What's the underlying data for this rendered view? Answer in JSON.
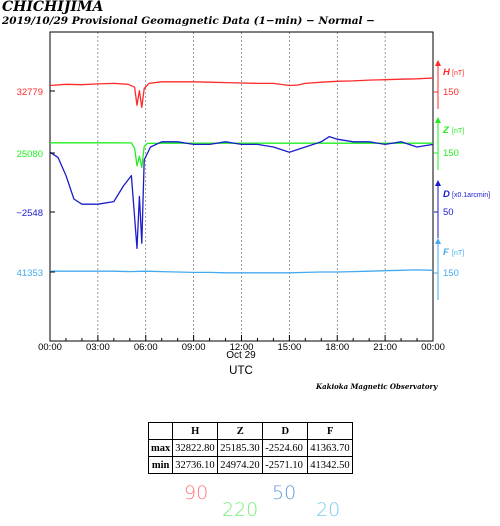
{
  "header": {
    "station": "CHICHIJIMA",
    "subtitle": "2019/10/29  Provisional Geomagnetic Data (1−min)  − Normal −"
  },
  "observatory": "Kakioka Magnetic Observatory",
  "chart_data": {
    "type": "line",
    "x_ticks": [
      "00:00",
      "03:00",
      "06:00",
      "09:00",
      "12:00",
      "15:00",
      "18:00",
      "21:00",
      "00:00"
    ],
    "x_date_label": "Oct 29",
    "xlabel": "UTC",
    "grid": true,
    "series": [
      {
        "name": "H",
        "unit": "[nT]",
        "color": "#ff2a2a",
        "left_tick": "32779",
        "right_tick": "150",
        "points": [
          [
            0,
            32792
          ],
          [
            1,
            32795
          ],
          [
            2,
            32794
          ],
          [
            3,
            32796
          ],
          [
            4,
            32797
          ],
          [
            4.9,
            32795
          ],
          [
            5.3,
            32788
          ],
          [
            5.45,
            32745
          ],
          [
            5.6,
            32780
          ],
          [
            5.75,
            32740
          ],
          [
            5.9,
            32785
          ],
          [
            6.2,
            32797
          ],
          [
            7,
            32801
          ],
          [
            8,
            32801
          ],
          [
            9,
            32801
          ],
          [
            10,
            32800
          ],
          [
            11,
            32799
          ],
          [
            12,
            32798
          ],
          [
            13,
            32797
          ],
          [
            14,
            32797
          ],
          [
            15.0,
            32792
          ],
          [
            15.5,
            32793
          ],
          [
            16,
            32797
          ],
          [
            17,
            32800
          ],
          [
            18,
            32802
          ],
          [
            19,
            32803
          ],
          [
            20,
            32805
          ],
          [
            21,
            32806
          ],
          [
            22,
            32807
          ],
          [
            23,
            32808
          ],
          [
            24,
            32810
          ]
        ]
      },
      {
        "name": "Z",
        "unit": "[nT]",
        "color": "#22ee22",
        "left_tick": "25080",
        "right_tick": "150",
        "points": [
          [
            0,
            25144
          ],
          [
            2,
            25144
          ],
          [
            4,
            25144
          ],
          [
            5.1,
            25143
          ],
          [
            5.3,
            25110
          ],
          [
            5.45,
            25000
          ],
          [
            5.6,
            25060
          ],
          [
            5.75,
            24990
          ],
          [
            5.9,
            25120
          ],
          [
            6.1,
            25140
          ],
          [
            7,
            25141
          ],
          [
            9,
            25141
          ],
          [
            12,
            25141
          ],
          [
            15,
            25141
          ],
          [
            18,
            25141
          ],
          [
            21,
            25141
          ],
          [
            24,
            25141
          ]
        ]
      },
      {
        "name": "D",
        "unit": "[x0.1arcmin]",
        "color": "#1c1ccc",
        "left_tick": "−2548",
        "right_tick": "50",
        "points": [
          [
            0,
            -2525
          ],
          [
            0.5,
            -2527
          ],
          [
            1.0,
            -2534
          ],
          [
            1.5,
            -2543
          ],
          [
            2.0,
            -2545
          ],
          [
            3,
            -2545
          ],
          [
            4.0,
            -2544
          ],
          [
            4.6,
            -2538
          ],
          [
            5.1,
            -2534
          ],
          [
            5.3,
            -2550
          ],
          [
            5.45,
            -2562
          ],
          [
            5.6,
            -2542
          ],
          [
            5.75,
            -2560
          ],
          [
            5.9,
            -2528
          ],
          [
            6.3,
            -2523
          ],
          [
            7,
            -2521
          ],
          [
            8,
            -2521
          ],
          [
            9,
            -2522
          ],
          [
            10,
            -2522
          ],
          [
            11,
            -2521
          ],
          [
            12,
            -2522
          ],
          [
            13,
            -2522
          ],
          [
            14,
            -2523
          ],
          [
            15,
            -2525
          ],
          [
            16,
            -2523
          ],
          [
            17,
            -2521
          ],
          [
            17.5,
            -2519
          ],
          [
            18,
            -2520
          ],
          [
            19,
            -2521
          ],
          [
            20,
            -2521
          ],
          [
            21,
            -2522
          ],
          [
            22,
            -2521
          ],
          [
            23,
            -2523
          ],
          [
            24,
            -2522
          ]
        ]
      },
      {
        "name": "F",
        "unit": "[nT]",
        "color": "#44aaee",
        "left_tick": "41353",
        "right_tick": "150",
        "points": [
          [
            0,
            41355
          ],
          [
            2,
            41355
          ],
          [
            4,
            41355
          ],
          [
            5,
            41354
          ],
          [
            6,
            41355
          ],
          [
            7,
            41354
          ],
          [
            8,
            41353
          ],
          [
            9,
            41352
          ],
          [
            10,
            41352
          ],
          [
            11,
            41351
          ],
          [
            12,
            41351
          ],
          [
            13,
            41351
          ],
          [
            14,
            41351
          ],
          [
            15,
            41351
          ],
          [
            16,
            41352
          ],
          [
            17,
            41353
          ],
          [
            18,
            41353
          ],
          [
            19,
            41354
          ],
          [
            20,
            41355
          ],
          [
            21,
            41356
          ],
          [
            22,
            41357
          ],
          [
            23,
            41358
          ],
          [
            24,
            41357
          ]
        ]
      }
    ]
  },
  "table": {
    "headers": [
      "",
      "H",
      "Z",
      "D",
      "F"
    ],
    "rows": [
      {
        "label": "max",
        "values": [
          "32822.80",
          "25185.30",
          "-2524.60",
          "41363.70"
        ]
      },
      {
        "label": "min",
        "values": [
          "32736.10",
          "24974.20",
          "-2571.10",
          "41342.50"
        ]
      }
    ]
  },
  "handwritten": [
    {
      "text": "90",
      "color": "#ff7777"
    },
    {
      "text": "220",
      "color": "#77ee77"
    },
    {
      "text": "50",
      "color": "#6699dd"
    },
    {
      "text": "20",
      "color": "#77ccee"
    }
  ]
}
